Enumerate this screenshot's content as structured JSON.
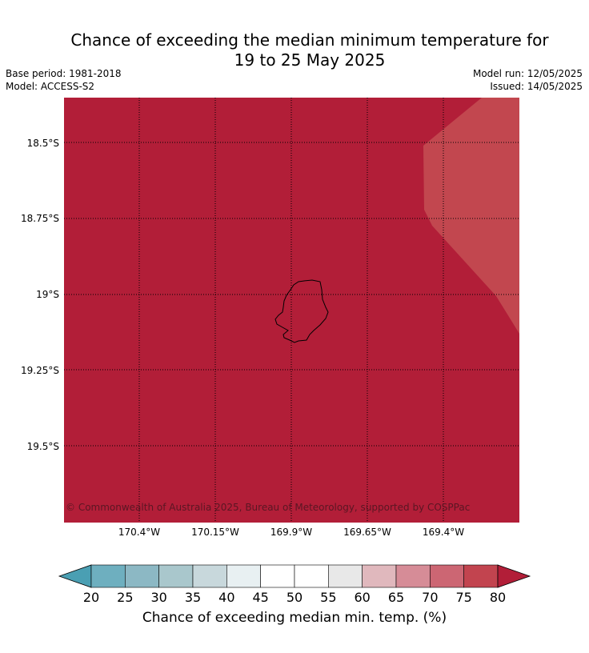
{
  "title_line1": "Chance of exceeding the median minimum temperature for",
  "title_line2": "19 to 25 May 2025",
  "meta": {
    "base_period": "Base period: 1981-2018",
    "model": "Model: ACCESS-S2",
    "model_run": "Model run: 12/05/2025",
    "issued": "Issued: 14/05/2025"
  },
  "copyright": "© Commonwealth of Australia 2025, Bureau of Meteorology, supported by COSPPac",
  "latitude_labels": [
    "18.5°S",
    "18.75°S",
    "19°S",
    "19.25°S",
    "19.5°S"
  ],
  "longitude_labels": [
    "170.4°W",
    "170.15°W",
    "169.9°W",
    "169.65°W",
    "169.4°W"
  ],
  "colorbar": {
    "ticks": [
      "20",
      "25",
      "30",
      "35",
      "40",
      "45",
      "50",
      "55",
      "60",
      "65",
      "70",
      "75",
      "80"
    ],
    "colors": [
      "#4a9fb3",
      "#6eafbf",
      "#8cb8c4",
      "#a9c7cc",
      "#c8d8dc",
      "#e8f0f2",
      "#ffffff",
      "#ffffff",
      "#e8e8e8",
      "#e0b8bd",
      "#d68c97",
      "#cc6673",
      "#c2444f",
      "#b21e38"
    ],
    "label": "Chance of exceeding median min. temp. (%)"
  },
  "map_colors": {
    "background": "#b21e38",
    "lighter_region": "#c2474f",
    "lighter_region_value_band": "75-80"
  }
}
